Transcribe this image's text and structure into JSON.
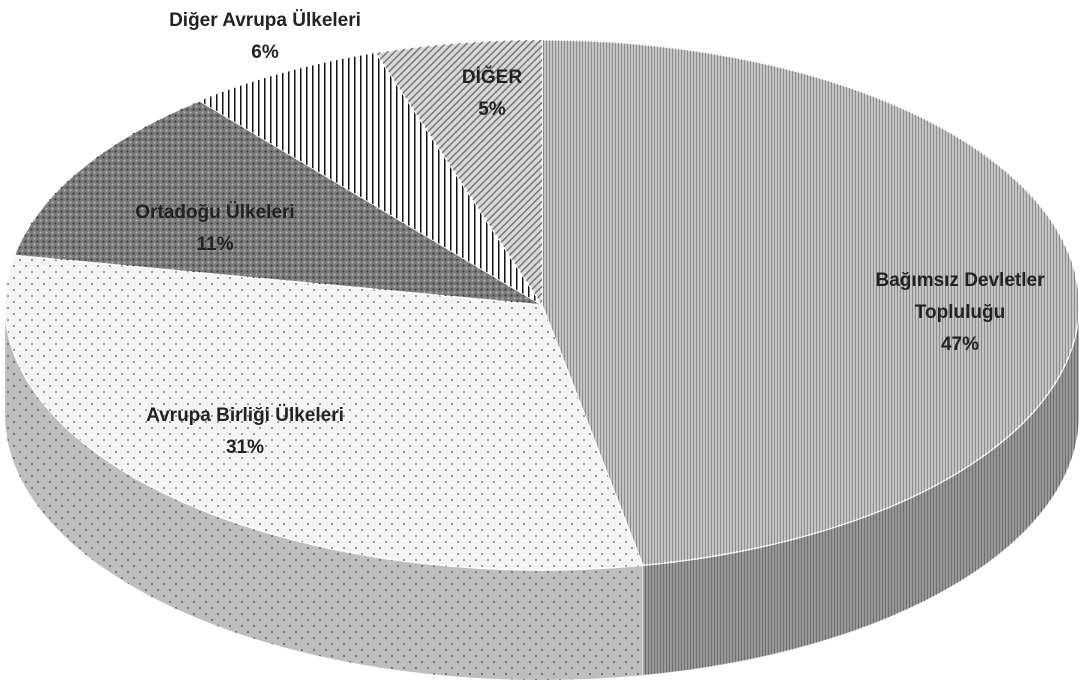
{
  "chart_data": {
    "type": "pie",
    "categories": [
      "Bağımsız Devletler Topluluğu",
      "Avrupa Birliği Ülkeleri",
      "Ortadoğu Ülkeleri",
      "Diğer Avrupa Ülkeleri",
      "DİĞER"
    ],
    "values": [
      47,
      31,
      11,
      6,
      5
    ],
    "value_labels": [
      "47%",
      "31%",
      "11%",
      "6%",
      "5%"
    ],
    "colors": [
      "#c4c4c4",
      "#f4f4f4",
      "#7a7a7a",
      "#ffffff",
      "#d8d8d8"
    ]
  }
}
